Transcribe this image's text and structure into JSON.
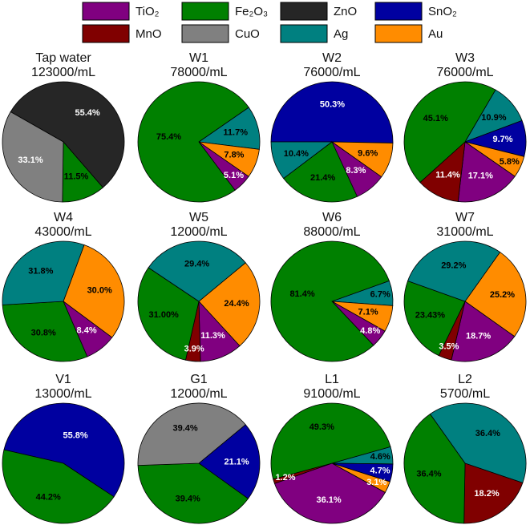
{
  "chart_data": {
    "type": "pie",
    "legend": {
      "placement": "top",
      "entries": [
        {
          "key": "TiO2",
          "label": "TiO₂",
          "color": "#800080"
        },
        {
          "key": "Fe2O3",
          "label": "Fe₂O₃",
          "color": "#008000"
        },
        {
          "key": "ZnO",
          "label": "ZnO",
          "color": "#262626"
        },
        {
          "key": "SnO2",
          "label": "SnO₂",
          "color": "#0000a0"
        },
        {
          "key": "MnO",
          "label": "MnO",
          "color": "#800000"
        },
        {
          "key": "CuO",
          "label": "CuO",
          "color": "#808080"
        },
        {
          "key": "Ag",
          "label": "Ag",
          "color": "#008080"
        },
        {
          "key": "Au",
          "label": "Au",
          "color": "#ff8c00"
        }
      ]
    },
    "pies": [
      {
        "name": "Tap water",
        "concentration": "123000/mL",
        "slices": [
          {
            "key": "ZnO",
            "value": 55.4,
            "label": "55.4%",
            "label_color": "#ffffff"
          },
          {
            "key": "Fe2O3",
            "value": 11.5,
            "label": "11.5%",
            "label_color": "#000000"
          },
          {
            "key": "CuO",
            "value": 33.1,
            "label": "33.1%",
            "label_color": "#ffffff"
          }
        ]
      },
      {
        "name": "W1",
        "concentration": "78000/mL",
        "slices": [
          {
            "key": "Ag",
            "value": 11.7,
            "label": "11.7%",
            "label_color": "#000000"
          },
          {
            "key": "Au",
            "value": 7.8,
            "label": "7.8%",
            "label_color": "#000000"
          },
          {
            "key": "TiO2",
            "value": 5.1,
            "label": "5.1%",
            "label_color": "#ffffff"
          },
          {
            "key": "Fe2O3",
            "value": 75.4,
            "label": "75.4%",
            "label_color": "#000000"
          }
        ]
      },
      {
        "name": "W2",
        "concentration": "76000/mL",
        "slices": [
          {
            "key": "SnO2",
            "value": 50.3,
            "label": "50.3%",
            "label_color": "#ffffff"
          },
          {
            "key": "Au",
            "value": 9.6,
            "label": "9.6%",
            "label_color": "#000000"
          },
          {
            "key": "TiO2",
            "value": 8.3,
            "label": "8.3%",
            "label_color": "#ffffff"
          },
          {
            "key": "Fe2O3",
            "value": 21.4,
            "label": "21.4%",
            "label_color": "#000000"
          },
          {
            "key": "Ag",
            "value": 10.4,
            "label": "10.4%",
            "label_color": "#000000"
          }
        ]
      },
      {
        "name": "W3",
        "concentration": "76000/mL",
        "slices": [
          {
            "key": "Ag",
            "value": 10.9,
            "label": "10.9%",
            "label_color": "#000000"
          },
          {
            "key": "SnO2",
            "value": 9.7,
            "label": "9.7%",
            "label_color": "#ffffff"
          },
          {
            "key": "Au",
            "value": 5.8,
            "label": "5.8%",
            "label_color": "#000000"
          },
          {
            "key": "TiO2",
            "value": 17.1,
            "label": "17.1%",
            "label_color": "#ffffff"
          },
          {
            "key": "MnO",
            "value": 11.4,
            "label": "11.4%",
            "label_color": "#ffffff"
          },
          {
            "key": "Fe2O3",
            "value": 45.1,
            "label": "45.1%",
            "label_color": "#000000"
          }
        ]
      },
      {
        "name": "W4",
        "concentration": "43000/mL",
        "slices": [
          {
            "key": "Au",
            "value": 30.0,
            "label": "30.0%",
            "label_color": "#000000"
          },
          {
            "key": "TiO2",
            "value": 8.4,
            "label": "8.4%",
            "label_color": "#ffffff"
          },
          {
            "key": "Fe2O3",
            "value": 30.8,
            "label": "30.8%",
            "label_color": "#000000"
          },
          {
            "key": "Ag",
            "value": 31.8,
            "label": "31.8%",
            "label_color": "#000000"
          }
        ]
      },
      {
        "name": "W5",
        "concentration": "12000/mL",
        "slices": [
          {
            "key": "Au",
            "value": 24.4,
            "label": "24.4%",
            "label_color": "#000000"
          },
          {
            "key": "TiO2",
            "value": 11.3,
            "label": "11.3%",
            "label_color": "#ffffff"
          },
          {
            "key": "MnO",
            "value": 3.9,
            "label": "3.9%",
            "label_color": "#ffffff"
          },
          {
            "key": "Fe2O3",
            "value": 31.0,
            "label": "31.00%",
            "label_color": "#000000"
          },
          {
            "key": "Ag",
            "value": 29.4,
            "label": "29.4%",
            "label_color": "#000000"
          }
        ]
      },
      {
        "name": "W6",
        "concentration": "88000/mL",
        "slices": [
          {
            "key": "Ag",
            "value": 6.7,
            "label": "6.7%",
            "label_color": "#000000"
          },
          {
            "key": "Au",
            "value": 7.1,
            "label": "7.1%",
            "label_color": "#000000"
          },
          {
            "key": "TiO2",
            "value": 4.8,
            "label": "4.8%",
            "label_color": "#ffffff"
          },
          {
            "key": "Fe2O3",
            "value": 81.4,
            "label": "81.4%",
            "label_color": "#000000"
          }
        ]
      },
      {
        "name": "W7",
        "concentration": "31000/mL",
        "slices": [
          {
            "key": "Au",
            "value": 25.2,
            "label": "25.2%",
            "label_color": "#000000"
          },
          {
            "key": "TiO2",
            "value": 18.7,
            "label": "18.7%",
            "label_color": "#ffffff"
          },
          {
            "key": "MnO",
            "value": 3.5,
            "label": "3.5%",
            "label_color": "#ffffff"
          },
          {
            "key": "Fe2O3",
            "value": 23.43,
            "label": "23.43%",
            "label_color": "#000000"
          },
          {
            "key": "Ag",
            "value": 29.2,
            "label": "29.2%",
            "label_color": "#000000"
          }
        ]
      },
      {
        "name": "V1",
        "concentration": "13000/mL",
        "slices": [
          {
            "key": "SnO2",
            "value": 55.8,
            "label": "55.8%",
            "label_color": "#ffffff"
          },
          {
            "key": "Fe2O3",
            "value": 44.2,
            "label": "44.2%",
            "label_color": "#000000"
          }
        ]
      },
      {
        "name": "G1",
        "concentration": "12000/mL",
        "slices": [
          {
            "key": "SnO2",
            "value": 21.1,
            "label": "21.1%",
            "label_color": "#ffffff"
          },
          {
            "key": "Fe2O3",
            "value": 39.4,
            "label": "39.4%",
            "label_color": "#000000"
          },
          {
            "key": "CuO",
            "value": 39.4,
            "label": "39.4%",
            "label_color": "#000000"
          }
        ]
      },
      {
        "name": "L1",
        "concentration": "91000/mL",
        "slices": [
          {
            "key": "Ag",
            "value": 4.6,
            "label": "4.6%",
            "label_color": "#000000"
          },
          {
            "key": "SnO2",
            "value": 4.7,
            "label": "4.7%",
            "label_color": "#ffffff"
          },
          {
            "key": "Au",
            "value": 3.1,
            "label": "3.1%",
            "label_color": "#ffffff"
          },
          {
            "key": "TiO2",
            "value": 36.1,
            "label": "36.1%",
            "label_color": "#ffffff"
          },
          {
            "key": "MnO",
            "value": 1.2,
            "label": "1.2%",
            "label_color": "#ffffff"
          },
          {
            "key": "Fe2O3",
            "value": 49.3,
            "label": "49.3%",
            "label_color": "#000000"
          }
        ]
      },
      {
        "name": "L2",
        "concentration": "5700/mL",
        "slices": [
          {
            "key": "Ag",
            "value": 36.4,
            "label": "36.4%",
            "label_color": "#000000"
          },
          {
            "key": "MnO",
            "value": 18.2,
            "label": "18.2%",
            "label_color": "#ffffff"
          },
          {
            "key": "Fe2O3",
            "value": 36.4,
            "label": "36.4%",
            "label_color": "#000000"
          }
        ]
      }
    ]
  }
}
